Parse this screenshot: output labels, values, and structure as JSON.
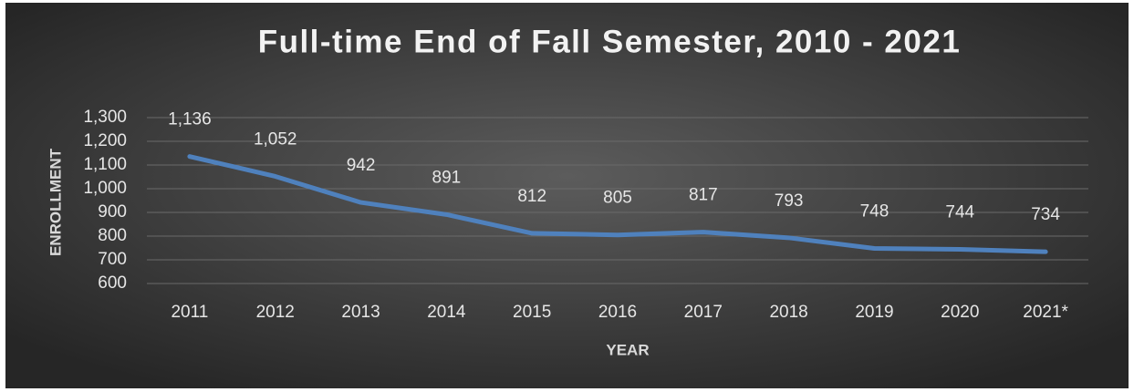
{
  "chart_data": {
    "type": "line",
    "title": "Full-time End of Fall Semester, 2010 - 2021",
    "x_label": "YEAR",
    "y_label": "ENROLLMENT",
    "categories": [
      "2011",
      "2012",
      "2013",
      "2014",
      "2015",
      "2016",
      "2017",
      "2018",
      "2019",
      "2020",
      "2021*"
    ],
    "series": [
      {
        "name": "Enrollment",
        "color": "#4f81bd",
        "values": [
          1136,
          1052,
          942,
          891,
          812,
          805,
          817,
          793,
          748,
          744,
          734
        ],
        "value_labels": [
          "1,136",
          "1,052",
          "942",
          "891",
          "812",
          "805",
          "817",
          "793",
          "748",
          "744",
          "734"
        ]
      }
    ],
    "ylim": [
      600,
      1300
    ],
    "yticks": [
      600,
      700,
      800,
      900,
      {
        "value": 1000,
        "label": "1,000"
      },
      {
        "value": 1100,
        "label": "1,100"
      },
      {
        "value": 1200,
        "label": "1,200"
      },
      {
        "value": 1300,
        "label": "1,300"
      }
    ],
    "grid": true
  }
}
